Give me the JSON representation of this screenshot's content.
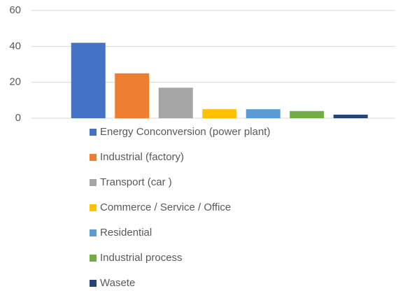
{
  "chart_data": {
    "type": "bar",
    "categories": [
      "Energy Conconversion (power plant)",
      "Industrial (factory)",
      "Transport (car )",
      "Commerce / Service / Office",
      "Residential",
      "Industrial process",
      "Wasete"
    ],
    "values": [
      42,
      25,
      17,
      5,
      5,
      4,
      2
    ],
    "colors": [
      "#4472c4",
      "#ed7d31",
      "#a5a5a5",
      "#ffc000",
      "#5b9bd5",
      "#70ad47",
      "#264478"
    ],
    "ylim": [
      0,
      60
    ],
    "yticks": [
      0,
      20,
      40,
      60
    ],
    "grid": true,
    "legend": "bottom"
  }
}
